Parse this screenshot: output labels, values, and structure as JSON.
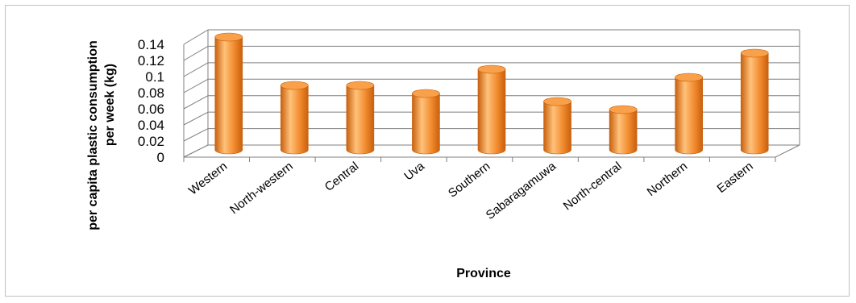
{
  "chart_data": {
    "type": "bar",
    "style": "3d-cylinder",
    "categories": [
      "Western",
      "North-western",
      "Central",
      "Uva",
      "Southern",
      "Sabaragamuwa",
      "North-central",
      "Northern",
      "Eastern"
    ],
    "values": [
      0.14,
      0.08,
      0.08,
      0.07,
      0.1,
      0.06,
      0.05,
      0.09,
      0.12
    ],
    "ylim": [
      0,
      0.14
    ],
    "yticks": [
      "0",
      "0.02",
      "0.04",
      "0.06",
      "0.08",
      "0.1",
      "0.12",
      "0.14"
    ],
    "xlabel": "Province",
    "ylabel_line1": "per capita plastic consumption",
    "ylabel_line2": "per week (kg)",
    "grid": true,
    "legend": "none",
    "colors": {
      "bar_main": "#F28A2E",
      "bar_light": "#FFC27A",
      "bar_dark": "#C8600E",
      "bar_top": "#F9A04A",
      "grid": "#7f7f7f"
    }
  }
}
